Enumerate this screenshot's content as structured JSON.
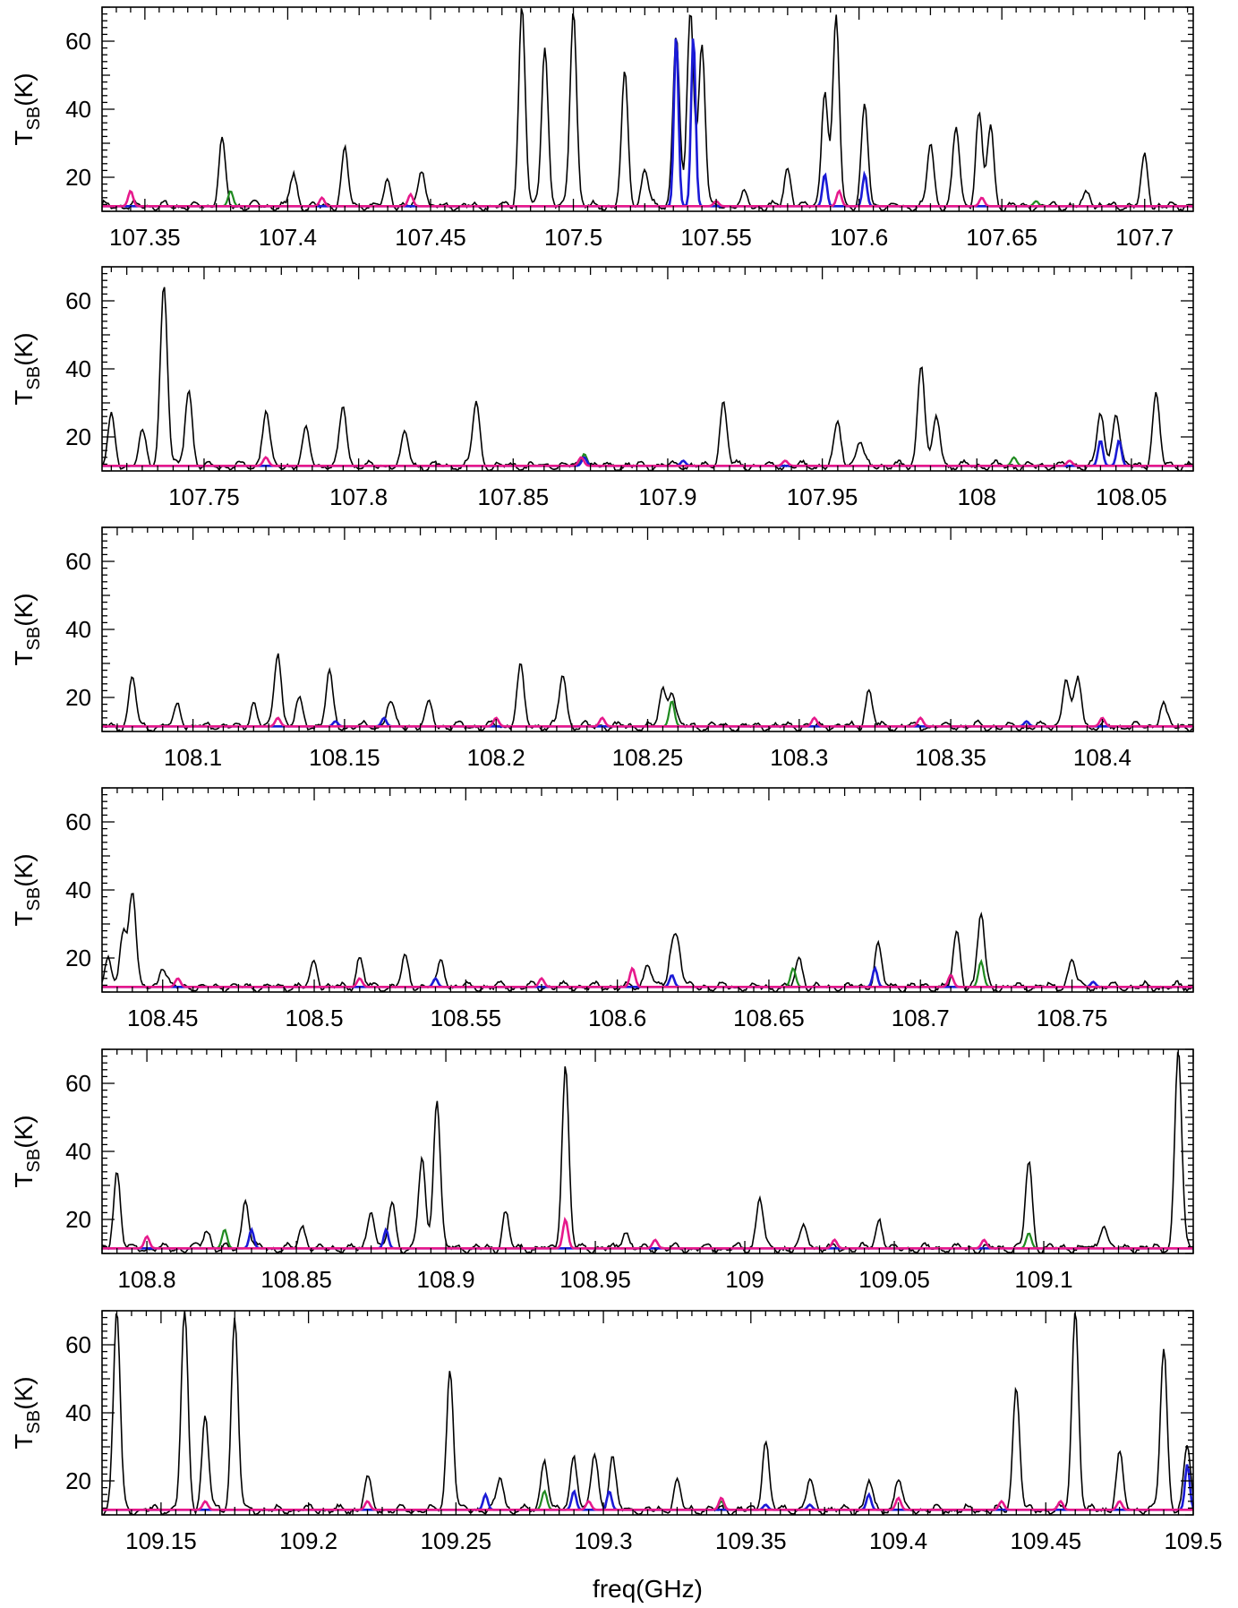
{
  "chart_data": {
    "type": "line",
    "description": "Spectral line survey, six stacked frequency panels; black = observed spectrum, colored = model species",
    "ylabel": "T",
    "ylabel_sub": "SB",
    "ylabel_unit": "(K)",
    "xlabel": "freq(GHz)",
    "ylim": [
      10,
      70
    ],
    "yticks": [
      20,
      40,
      60
    ],
    "series_colors": {
      "observed": "#000000",
      "green": "#1f8a1f",
      "blue": "#1a1ad6",
      "magenta": "#e6198c"
    },
    "panels": [
      {
        "xlim": [
          107.335,
          107.717
        ],
        "xticks": [
          "107.35",
          "107.4",
          "107.45",
          "107.5",
          "107.55",
          "107.6",
          "107.65",
          "107.7"
        ],
        "observed_peaks": [
          [
            107.377,
            31
          ],
          [
            107.39,
            12
          ],
          [
            107.402,
            21
          ],
          [
            107.42,
            28
          ],
          [
            107.435,
            19
          ],
          [
            107.447,
            23
          ],
          [
            107.482,
            70
          ],
          [
            107.49,
            59
          ],
          [
            107.5,
            70
          ],
          [
            107.518,
            50
          ],
          [
            107.525,
            23
          ],
          [
            107.536,
            62
          ],
          [
            107.541,
            70
          ],
          [
            107.545,
            60
          ],
          [
            107.56,
            15
          ],
          [
            107.575,
            23
          ],
          [
            107.588,
            46
          ],
          [
            107.592,
            67
          ],
          [
            107.602,
            41
          ],
          [
            107.625,
            30
          ],
          [
            107.634,
            35
          ],
          [
            107.642,
            39
          ],
          [
            107.646,
            35
          ],
          [
            107.68,
            16
          ],
          [
            107.7,
            26
          ]
        ],
        "green_peaks": [
          [
            107.38,
            16
          ],
          [
            107.662,
            13
          ]
        ],
        "blue_peaks": [
          [
            107.536,
            62
          ],
          [
            107.542,
            62
          ],
          [
            107.588,
            21
          ],
          [
            107.602,
            21
          ]
        ],
        "magenta_peaks": [
          [
            107.345,
            16
          ],
          [
            107.412,
            14
          ],
          [
            107.443,
            15
          ],
          [
            107.55,
            13
          ],
          [
            107.593,
            16
          ],
          [
            107.643,
            14
          ]
        ]
      },
      {
        "xlim": [
          107.717,
          108.07
        ],
        "xticks": [
          "107.75",
          "107.8",
          "107.85",
          "107.9",
          "107.95",
          "108",
          "108.05"
        ],
        "observed_peaks": [
          [
            107.72,
            26
          ],
          [
            107.73,
            21
          ],
          [
            107.737,
            65
          ],
          [
            107.745,
            34
          ],
          [
            107.77,
            28
          ],
          [
            107.783,
            22
          ],
          [
            107.795,
            29
          ],
          [
            107.815,
            21
          ],
          [
            107.838,
            30
          ],
          [
            107.873,
            15
          ],
          [
            107.918,
            30
          ],
          [
            107.955,
            24
          ],
          [
            107.962,
            19
          ],
          [
            107.982,
            42
          ],
          [
            107.987,
            26
          ],
          [
            108.04,
            27
          ],
          [
            108.045,
            28
          ],
          [
            108.058,
            32
          ]
        ],
        "green_peaks": [
          [
            107.873,
            15
          ],
          [
            108.012,
            14
          ]
        ],
        "blue_peaks": [
          [
            107.873,
            14
          ],
          [
            107.905,
            13
          ],
          [
            108.04,
            19
          ],
          [
            108.046,
            19
          ]
        ],
        "magenta_peaks": [
          [
            107.77,
            14
          ],
          [
            107.872,
            14
          ],
          [
            107.938,
            13
          ],
          [
            108.03,
            13
          ]
        ]
      },
      {
        "xlim": [
          108.07,
          108.43
        ],
        "xticks": [
          "108.1",
          "108.15",
          "108.2",
          "108.25",
          "108.3",
          "108.35",
          "108.4"
        ],
        "observed_peaks": [
          [
            108.08,
            26
          ],
          [
            108.095,
            18
          ],
          [
            108.12,
            18
          ],
          [
            108.128,
            34
          ],
          [
            108.135,
            19
          ],
          [
            108.145,
            27
          ],
          [
            108.165,
            19
          ],
          [
            108.178,
            18
          ],
          [
            108.208,
            29
          ],
          [
            108.222,
            27
          ],
          [
            108.255,
            22
          ],
          [
            108.258,
            22
          ],
          [
            108.323,
            22
          ],
          [
            108.388,
            26
          ],
          [
            108.392,
            26
          ],
          [
            108.42,
            18
          ]
        ],
        "green_peaks": [
          [
            108.258,
            19
          ]
        ],
        "blue_peaks": [
          [
            108.147,
            13
          ],
          [
            108.163,
            14
          ],
          [
            108.375,
            13
          ]
        ],
        "magenta_peaks": [
          [
            108.128,
            14
          ],
          [
            108.2,
            14
          ],
          [
            108.235,
            14
          ],
          [
            108.305,
            14
          ],
          [
            108.34,
            14
          ],
          [
            108.4,
            14
          ]
        ]
      },
      {
        "xlim": [
          108.43,
          108.79
        ],
        "xticks": [
          "108.45",
          "108.5",
          "108.55",
          "108.6",
          "108.65",
          "108.7",
          "108.75"
        ],
        "observed_peaks": [
          [
            108.432,
            19
          ],
          [
            108.437,
            27
          ],
          [
            108.44,
            40
          ],
          [
            108.45,
            18
          ],
          [
            108.5,
            19
          ],
          [
            108.515,
            20
          ],
          [
            108.53,
            20
          ],
          [
            108.542,
            19
          ],
          [
            108.61,
            19
          ],
          [
            108.618,
            22
          ],
          [
            108.62,
            24
          ],
          [
            108.66,
            20
          ],
          [
            108.686,
            24
          ],
          [
            108.712,
            27
          ],
          [
            108.72,
            33
          ],
          [
            108.75,
            20
          ]
        ],
        "green_peaks": [
          [
            108.658,
            17
          ],
          [
            108.72,
            19
          ]
        ],
        "blue_peaks": [
          [
            108.54,
            14
          ],
          [
            108.618,
            15
          ],
          [
            108.685,
            17
          ],
          [
            108.757,
            13
          ]
        ],
        "magenta_peaks": [
          [
            108.455,
            14
          ],
          [
            108.515,
            14
          ],
          [
            108.575,
            14
          ],
          [
            108.605,
            17
          ],
          [
            108.71,
            15
          ]
        ]
      },
      {
        "xlim": [
          108.785,
          109.15
        ],
        "xticks": [
          "108.8",
          "108.85",
          "108.9",
          "108.95",
          "109",
          "109.05",
          "109.1"
        ],
        "observed_peaks": [
          [
            108.79,
            34
          ],
          [
            108.82,
            17
          ],
          [
            108.833,
            26
          ],
          [
            108.852,
            18
          ],
          [
            108.875,
            23
          ],
          [
            108.882,
            25
          ],
          [
            108.892,
            38
          ],
          [
            108.897,
            56
          ],
          [
            108.92,
            22
          ],
          [
            108.94,
            65
          ],
          [
            108.96,
            17
          ],
          [
            109.005,
            27
          ],
          [
            109.02,
            18
          ],
          [
            109.045,
            20
          ],
          [
            109.095,
            37
          ],
          [
            109.12,
            19
          ],
          [
            109.145,
            70
          ]
        ],
        "green_peaks": [
          [
            108.826,
            17
          ],
          [
            109.095,
            16
          ]
        ],
        "blue_peaks": [
          [
            108.835,
            17
          ],
          [
            108.88,
            17
          ]
        ],
        "magenta_peaks": [
          [
            108.8,
            15
          ],
          [
            108.94,
            20
          ],
          [
            108.97,
            14
          ],
          [
            109.03,
            14
          ],
          [
            109.08,
            14
          ]
        ]
      },
      {
        "xlim": [
          109.13,
          109.5
        ],
        "xticks": [
          "109.15",
          "109.2",
          "109.25",
          "109.3",
          "109.35",
          "109.4",
          "109.45",
          "109.5"
        ],
        "observed_peaks": [
          [
            109.135,
            70
          ],
          [
            109.158,
            70
          ],
          [
            109.165,
            39
          ],
          [
            109.175,
            68
          ],
          [
            109.22,
            21
          ],
          [
            109.248,
            53
          ],
          [
            109.265,
            21
          ],
          [
            109.28,
            27
          ],
          [
            109.29,
            28
          ],
          [
            109.297,
            28
          ],
          [
            109.303,
            27
          ],
          [
            109.325,
            20
          ],
          [
            109.355,
            32
          ],
          [
            109.37,
            20
          ],
          [
            109.39,
            20
          ],
          [
            109.4,
            21
          ],
          [
            109.44,
            48
          ],
          [
            109.46,
            70
          ],
          [
            109.475,
            28
          ],
          [
            109.49,
            59
          ],
          [
            109.498,
            30
          ]
        ],
        "green_peaks": [
          [
            109.28,
            17
          ],
          [
            109.34,
            14
          ]
        ],
        "blue_peaks": [
          [
            109.26,
            16
          ],
          [
            109.29,
            17
          ],
          [
            109.302,
            17
          ],
          [
            109.355,
            13
          ],
          [
            109.37,
            13
          ],
          [
            109.39,
            16
          ],
          [
            109.498,
            25
          ]
        ],
        "magenta_peaks": [
          [
            109.165,
            14
          ],
          [
            109.22,
            14
          ],
          [
            109.295,
            14
          ],
          [
            109.34,
            15
          ],
          [
            109.4,
            15
          ],
          [
            109.435,
            14
          ],
          [
            109.455,
            14
          ],
          [
            109.475,
            14
          ]
        ]
      }
    ]
  }
}
